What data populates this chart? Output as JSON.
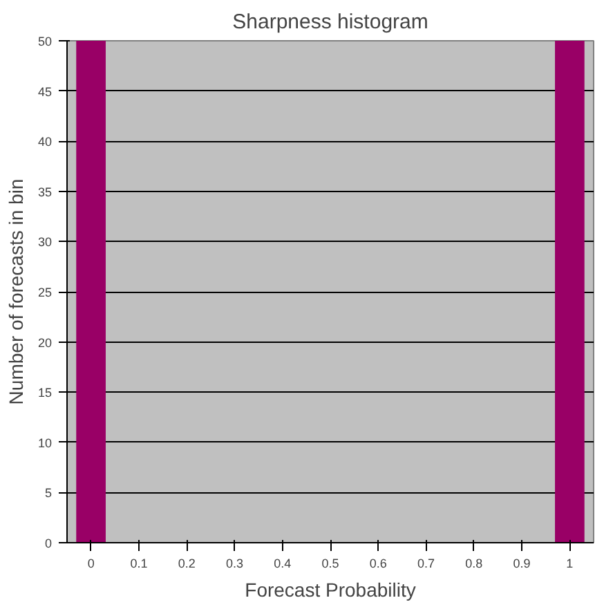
{
  "chart_data": {
    "type": "bar",
    "title": "Sharpness histogram",
    "xlabel": "Forecast Probability",
    "ylabel": "Number of forecasts in bin",
    "categories": [
      "0",
      "0.1",
      "0.2",
      "0.3",
      "0.4",
      "0.5",
      "0.6",
      "0.7",
      "0.8",
      "0.9",
      "1"
    ],
    "values": [
      50,
      0,
      0,
      0,
      0,
      0,
      0,
      0,
      0,
      0,
      50
    ],
    "color": "#990066",
    "ylim": [
      0,
      50
    ],
    "yticks": [
      0,
      5,
      10,
      15,
      20,
      25,
      30,
      35,
      40,
      45,
      50
    ],
    "grid": "y"
  }
}
